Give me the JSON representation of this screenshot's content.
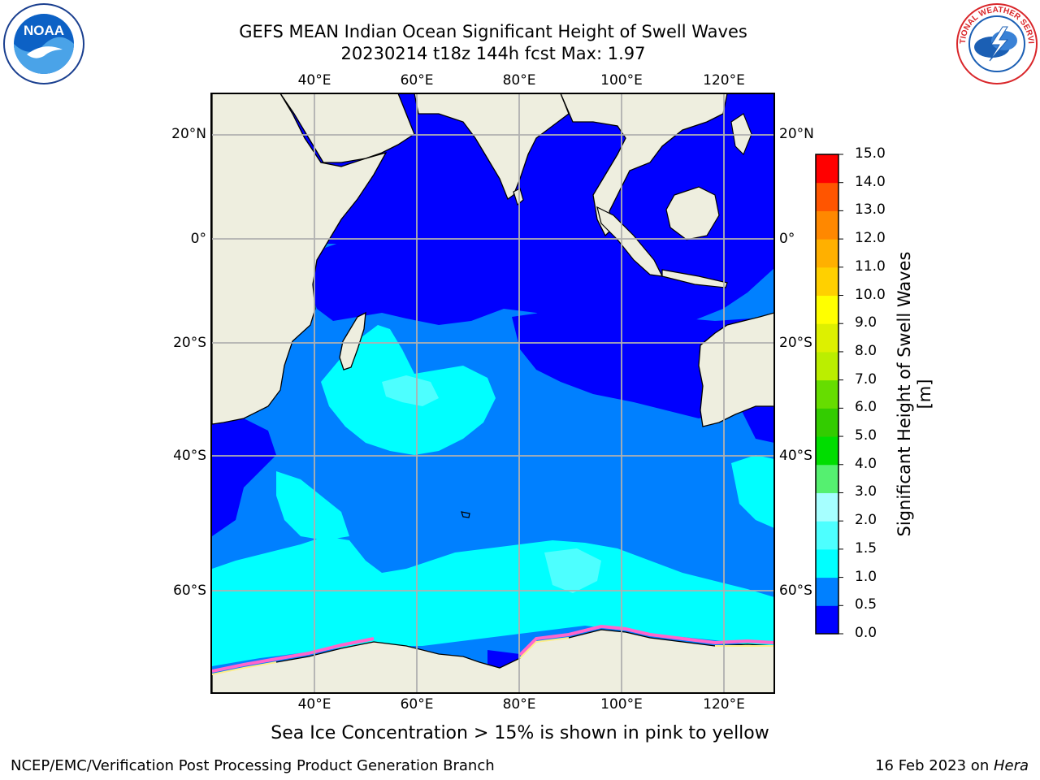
{
  "header": {
    "title_line1": "GEFS MEAN Indian Ocean Significant Height of Swell Waves",
    "title_line2": "20230214 t18z 144h fcst   Max: 1.97"
  },
  "logos": {
    "left": "NOAA",
    "left_ring": "NATIONAL OCEANIC AND ATMOSPHERIC ADMINISTRATION · U.S. DEPARTMENT OF COMMERCE",
    "right_ring": "NATIONAL WEATHER SERVICE"
  },
  "axes": {
    "lon_labels": [
      "40°E",
      "60°E",
      "80°E",
      "100°E",
      "120°E"
    ],
    "lat_labels": [
      "20°N",
      "0°",
      "20°S",
      "40°S",
      "60°S"
    ]
  },
  "colorbar": {
    "title": "Significant Height of Swell Waves [m]",
    "tick_labels": [
      "0.0",
      "0.5",
      "1.0",
      "1.5",
      "2.0",
      "3.0",
      "4.0",
      "5.0",
      "6.0",
      "7.0",
      "8.0",
      "9.0",
      "10.0",
      "11.0",
      "12.0",
      "13.0",
      "14.0",
      "15.0"
    ],
    "colors": [
      "#0000ff",
      "#0080ff",
      "#00ffff",
      "#4dffff",
      "#a6ffff",
      "#55f070",
      "#00dd00",
      "#33cc00",
      "#66dd00",
      "#bbee00",
      "#ddf000",
      "#ffff00",
      "#ffd000",
      "#ffb000",
      "#ff8800",
      "#ff5500",
      "#ff0000"
    ]
  },
  "map_colors": {
    "land": "#eeeedf",
    "ocean_low": "#0000ff",
    "ocean_mid": "#0080ff",
    "ocean_high": "#00ffff",
    "ocean_higher": "#4dffff",
    "ice": "#ff66cc"
  },
  "caption": "Sea Ice Concentration > 15% is shown in pink to yellow",
  "footer": {
    "left": "NCEP/EMC/Verification Post Processing Product Generation Branch",
    "date": "16 Feb 2023 on ",
    "machine": "Hera"
  }
}
